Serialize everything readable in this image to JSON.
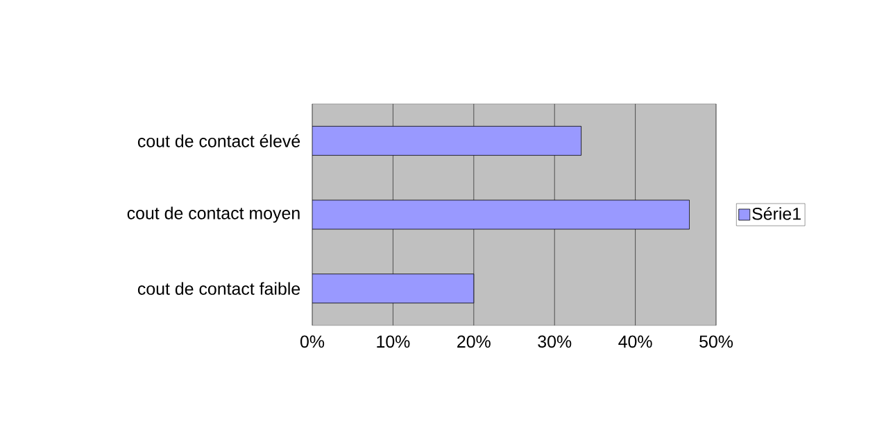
{
  "chart_data": {
    "type": "bar",
    "orientation": "horizontal",
    "categories": [
      "cout de contact élevé",
      "cout de contact moyen",
      "cout de contact faible"
    ],
    "series": [
      {
        "name": "Série1",
        "color": "#9999ff",
        "values": [
          33.3,
          46.7,
          20
        ]
      }
    ],
    "xlim": [
      0,
      50
    ],
    "xticks": [
      {
        "value": 0,
        "label": "0%"
      },
      {
        "value": 10,
        "label": "10%"
      },
      {
        "value": 20,
        "label": "20%"
      },
      {
        "value": 30,
        "label": "30%"
      },
      {
        "value": 40,
        "label": "40%"
      },
      {
        "value": 50,
        "label": "50%"
      }
    ],
    "grid": "x",
    "legend": "right"
  }
}
